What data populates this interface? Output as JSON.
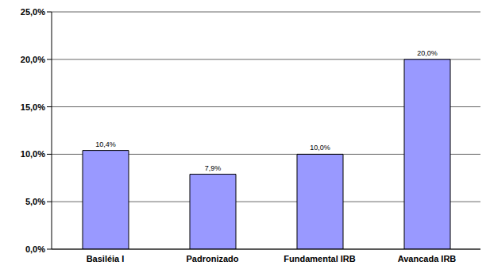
{
  "chart_data": {
    "type": "bar",
    "categories": [
      "Basiléia I",
      "Padronizado",
      "Fundamental IRB",
      "Avançada IRB"
    ],
    "values": [
      10.4,
      7.9,
      10.0,
      20.0
    ],
    "value_labels": [
      "10,4%",
      "7,9%",
      "10,0%",
      "20,0%"
    ],
    "color": "#9999ff",
    "ylim": [
      0,
      25
    ],
    "yticks": [
      {
        "value": 0,
        "label": "0,0%"
      },
      {
        "value": 5,
        "label": "5,0%"
      },
      {
        "value": 10,
        "label": "10,0%"
      },
      {
        "value": 15,
        "label": "15,0%"
      },
      {
        "value": 20,
        "label": "20,0%"
      },
      {
        "value": 25,
        "label": "25,0%"
      }
    ],
    "grid": true,
    "data_labels": true
  }
}
